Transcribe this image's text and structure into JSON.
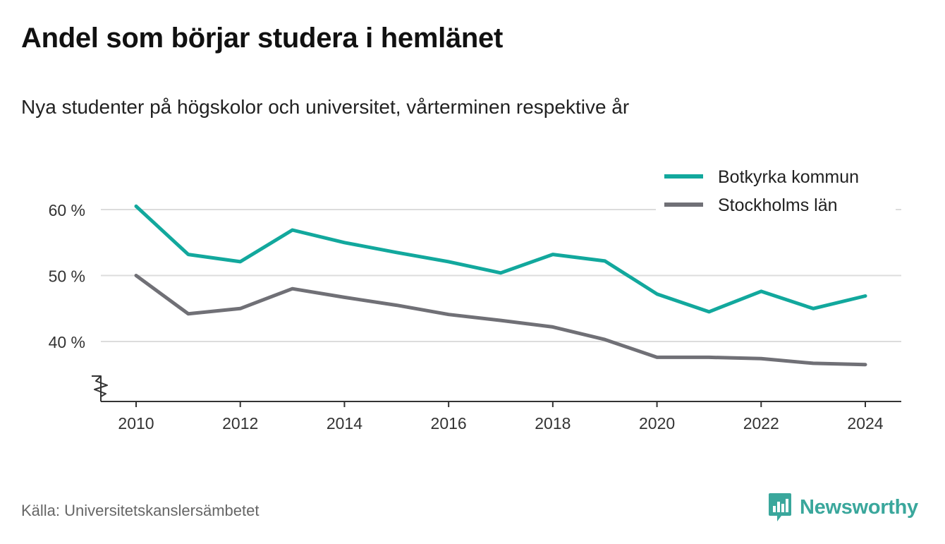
{
  "title": "Andel som börjar studera i hemlänet",
  "subtitle": "Nya studenter på högskolor och universitet, vårterminen respektive år",
  "source": "Källa: Universitetskanslersämbetet",
  "brand": {
    "name": "Newsworthy",
    "icon": "newsworthy-logo-icon",
    "color": "#3aa79c"
  },
  "chart_data": {
    "type": "line",
    "x": [
      2010,
      2011,
      2012,
      2013,
      2014,
      2015,
      2016,
      2017,
      2018,
      2019,
      2020,
      2021,
      2022,
      2023,
      2024
    ],
    "x_ticks": [
      2010,
      2012,
      2014,
      2016,
      2018,
      2020,
      2022,
      2024
    ],
    "y_ticks": [
      {
        "value": 40,
        "label": "40 %"
      },
      {
        "value": 50,
        "label": "50 %"
      },
      {
        "value": 60,
        "label": "60 %"
      }
    ],
    "ylim": [
      31,
      62
    ],
    "y_axis_break": true,
    "grid": "horizontal",
    "legend_position": "top-right",
    "series": [
      {
        "name": "Botkyrka kommun",
        "color": "#12a89d",
        "values": [
          60.5,
          53.2,
          52.1,
          56.9,
          55.0,
          53.5,
          52.1,
          50.4,
          53.2,
          52.2,
          47.2,
          44.5,
          47.6,
          45.0,
          46.9
        ]
      },
      {
        "name": "Stockholms län",
        "color": "#707076",
        "values": [
          50.0,
          44.2,
          45.0,
          48.0,
          46.7,
          45.5,
          44.1,
          43.2,
          42.2,
          40.3,
          37.6,
          37.6,
          37.4,
          36.7,
          36.5
        ]
      }
    ]
  }
}
